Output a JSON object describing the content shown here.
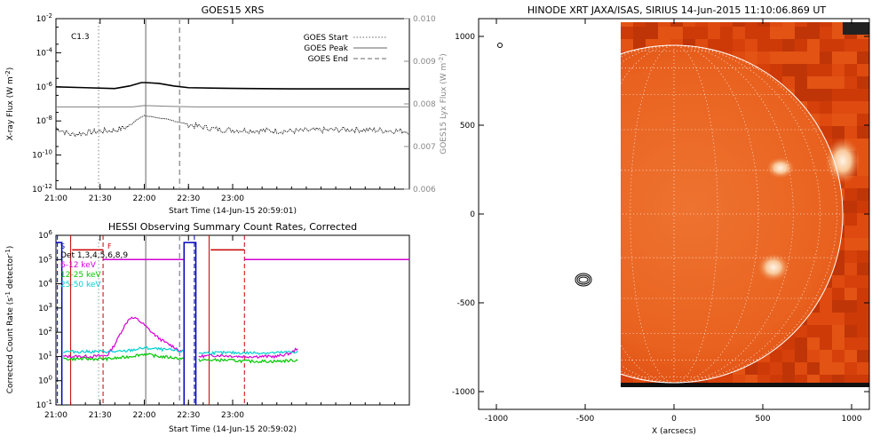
{
  "chart_data": [
    {
      "type": "line",
      "title": "GOES15 XRS",
      "xlabel": "Start Time (14-Jun-15 20:59:01)",
      "ylabel": "X-ray Flux (W m",
      "ylabel_sup": "-2",
      "ylabel_close": ")",
      "y2label": "GOES15 Lyx Flux (W m",
      "y2label_sup": "-2",
      "y2label_close": ")",
      "annotation": "C1.3",
      "xlim_minutes": [
        0,
        240
      ],
      "x_ticks": [
        {
          "m": 0,
          "label": "21:00"
        },
        {
          "m": 30,
          "label": "21:30"
        },
        {
          "m": 60,
          "label": "22:00"
        },
        {
          "m": 90,
          "label": "22:30"
        },
        {
          "m": 120,
          "label": "23:00"
        }
      ],
      "ylim_log10": [
        -12,
        -2
      ],
      "y_ticks": [
        {
          "e": -2,
          "base": "10",
          "exp": "-2"
        },
        {
          "e": -4,
          "base": "10",
          "exp": "-4"
        },
        {
          "e": -6,
          "base": "10",
          "exp": "-6"
        },
        {
          "e": -8,
          "base": "10",
          "exp": "-8"
        },
        {
          "e": -10,
          "base": "10",
          "exp": "-10"
        },
        {
          "e": -12,
          "base": "10",
          "exp": "-12"
        }
      ],
      "y2lim": [
        0.006,
        0.01
      ],
      "y2_ticks": [
        "0.010",
        "0.009",
        "0.008",
        "0.007",
        "0.006"
      ],
      "y2_tick_values": [
        0.01,
        0.009,
        0.008,
        0.007,
        0.006
      ],
      "legend": [
        {
          "label": "GOES Start",
          "style": "dotted"
        },
        {
          "label": "GOES Peak",
          "style": "solid"
        },
        {
          "label": "GOES End",
          "style": "dashed"
        }
      ],
      "markers": {
        "start": 29,
        "peak": 61,
        "end": 84
      },
      "series": [
        {
          "color": "#000000",
          "x": [
            0,
            20,
            40,
            50,
            58,
            61,
            70,
            80,
            90,
            110,
            130,
            160,
            240
          ],
          "log10y": [
            -6.0,
            -6.05,
            -6.1,
            -5.95,
            -5.75,
            -5.75,
            -5.8,
            -5.95,
            -6.05,
            -6.08,
            -6.1,
            -6.12,
            -6.12
          ]
        },
        {
          "color": "#808080",
          "x": [
            0,
            20,
            40,
            52,
            60,
            70,
            80,
            95,
            110,
            140,
            170,
            240
          ],
          "y2": [
            0.00793,
            0.00793,
            0.00793,
            0.00793,
            0.00796,
            0.00795,
            0.00794,
            0.00793,
            0.00793,
            0.00793,
            0.00793,
            0.00793
          ]
        },
        {
          "color": "#000000",
          "style": "noisy",
          "x": [
            0,
            10,
            20,
            30,
            40,
            50,
            55,
            60,
            65,
            75,
            85,
            95,
            110,
            130,
            160,
            200,
            240
          ],
          "log10y": [
            -8.4,
            -8.8,
            -8.7,
            -8.6,
            -8.55,
            -8.3,
            -7.9,
            -7.7,
            -7.75,
            -7.9,
            -8.1,
            -8.3,
            -8.5,
            -8.55,
            -8.6,
            -8.5,
            -8.6
          ]
        }
      ]
    },
    {
      "type": "line",
      "title": "HESSI Observing Summary Count Rates, Corrected",
      "xlabel": "Start Time (14-Jun-15 20:59:02)",
      "ylabel": "Corrected Count Rate (s",
      "ylabel_sup1": "-1",
      "ylabel_mid": " detector",
      "ylabel_sup2": "-1",
      "ylabel_close": ")",
      "xlim_minutes": [
        0,
        240
      ],
      "x_ticks": [
        {
          "m": 0,
          "label": "21:00"
        },
        {
          "m": 30,
          "label": "21:30"
        },
        {
          "m": 60,
          "label": "22:00"
        },
        {
          "m": 90,
          "label": "22:30"
        },
        {
          "m": 120,
          "label": "23:00"
        }
      ],
      "ylim_log10": [
        -1,
        6
      ],
      "y_ticks": [
        {
          "e": 6,
          "exp": "6"
        },
        {
          "e": 5,
          "exp": "5"
        },
        {
          "e": 4,
          "exp": "4"
        },
        {
          "e": 3,
          "exp": "3"
        },
        {
          "e": 2,
          "exp": "2"
        },
        {
          "e": 1,
          "exp": "1"
        },
        {
          "e": 0,
          "exp": "0"
        },
        {
          "e": -1,
          "exp": "-1"
        }
      ],
      "legend": [
        {
          "label": "Det 1,3,4,5,6,8,9",
          "color": "#000000"
        },
        {
          "label": "6-12 keV",
          "color": "#d400d4"
        },
        {
          "label": "12-25 keV",
          "color": "#00c800"
        },
        {
          "label": "25-50 keV",
          "color": "#00d0d0"
        }
      ],
      "flag_labels": [
        {
          "text": "S",
          "m": 3,
          "color": "#0000c0"
        },
        {
          "text": "F",
          "m": 35,
          "color": "#c80000"
        }
      ],
      "markers": {
        "gray_dotted": 29,
        "gray_solid": 61,
        "gray_dashed": 84,
        "red_solid": [
          10,
          104
        ],
        "red_dashed": [
          32,
          128
        ],
        "blue_dashed": [
          1,
          94
        ]
      },
      "state_lines": [
        {
          "color": "#0000c0",
          "x": [
            0,
            0,
            4,
            4,
            1
          ],
          "log10y": [
            5.7,
            5.7,
            5.7,
            -1.2,
            -1.2
          ]
        },
        {
          "color": "#c80000",
          "x": [
            11,
            32
          ],
          "log10y": [
            5.4,
            5.4
          ]
        },
        {
          "color": "#d400d4",
          "x": [
            32,
            87
          ],
          "log10y": [
            5.0,
            5.0
          ]
        },
        {
          "color": "#0000c0",
          "x": [
            87,
            87,
            95,
            95
          ],
          "log10y": [
            -1.2,
            5.7,
            5.7,
            -1.2
          ]
        },
        {
          "color": "#c80000",
          "x": [
            105,
            128
          ],
          "log10y": [
            5.4,
            5.4
          ]
        },
        {
          "color": "#d400d4",
          "x": [
            128,
            240
          ],
          "log10y": [
            5.0,
            5.0
          ]
        }
      ],
      "series": [
        {
          "name": "6-12 keV",
          "color": "#d400d4",
          "segments": [
            {
              "x": [
                5,
                15,
                25,
                35,
                40,
                45,
                50,
                55,
                60,
                65,
                70,
                75,
                80,
                85
              ],
              "log10y": [
                1.0,
                1.0,
                1.0,
                1.05,
                1.5,
                2.1,
                2.6,
                2.55,
                2.3,
                2.0,
                1.75,
                1.55,
                1.4,
                1.2
              ]
            },
            {
              "x": [
                97,
                110,
                125,
                140,
                150,
                160,
                165
              ],
              "log10y": [
                1.0,
                1.05,
                1.0,
                1.0,
                1.0,
                1.15,
                1.4
              ]
            }
          ]
        },
        {
          "name": "12-25 keV",
          "color": "#00c800",
          "segments": [
            {
              "x": [
                5,
                20,
                35,
                45,
                55,
                60,
                70,
                80,
                87
              ],
              "log10y": [
                0.9,
                0.9,
                0.9,
                0.95,
                1.05,
                1.1,
                1.0,
                0.95,
                0.9
              ]
            },
            {
              "x": [
                97,
                115,
                130,
                150,
                165
              ],
              "log10y": [
                0.85,
                0.85,
                0.8,
                0.8,
                0.85
              ]
            }
          ]
        },
        {
          "name": "25-50 keV",
          "color": "#00d0d0",
          "segments": [
            {
              "x": [
                5,
                20,
                35,
                45,
                55,
                60,
                70,
                80,
                87
              ],
              "log10y": [
                1.2,
                1.2,
                1.2,
                1.2,
                1.3,
                1.35,
                1.3,
                1.25,
                1.2
              ]
            },
            {
              "x": [
                97,
                115,
                130,
                150,
                165
              ],
              "log10y": [
                1.15,
                1.15,
                1.15,
                1.15,
                1.2
              ]
            }
          ]
        }
      ]
    },
    {
      "type": "heatmap",
      "title": "HINODE XRT JAXA/ISAS, SIRIUS 14-Jun-2015 11:10:06.869 UT",
      "xlabel": "X (arcsecs)",
      "xlim": [
        -1100,
        1100
      ],
      "ylim": [
        -1100,
        1100
      ],
      "x_ticks": [
        -1000,
        -500,
        0,
        500,
        1000
      ],
      "x_tick_labels": [
        "-1000",
        "-500",
        "0",
        "500",
        "1000"
      ],
      "y_ticks": [
        1000,
        500,
        0,
        -500,
        -1000
      ],
      "y_tick_labels": [
        "1000",
        "500",
        "0",
        "-500",
        "-1000"
      ],
      "image_extent_x": [
        -300,
        1100
      ],
      "image_extent_y": [
        -975,
        1080
      ],
      "disk_radius": 950,
      "grid": true,
      "colormap": "orange",
      "bright_regions": [
        {
          "x": 600,
          "y": 260,
          "rx": 80,
          "ry": 60
        },
        {
          "x": 560,
          "y": -300,
          "rx": 90,
          "ry": 80
        },
        {
          "x": 950,
          "y": 300,
          "rx": 100,
          "ry": 130
        }
      ],
      "contour_center": [
        -510,
        -370
      ]
    }
  ]
}
